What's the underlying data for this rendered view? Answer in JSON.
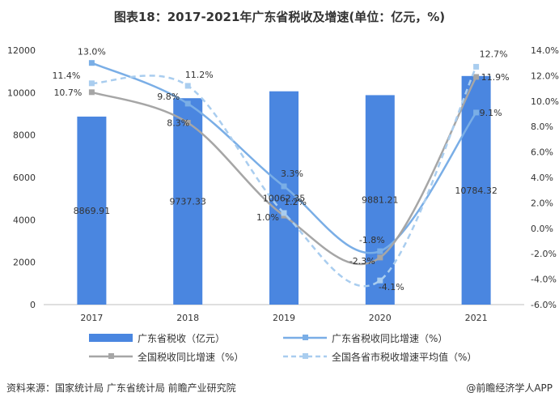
{
  "title": "图表18：2017-2021年广东省税收及增速(单位：亿元，%)",
  "footer": {
    "source": "资料来源：国家统计局 广东省统计局 前瞻产业研究院",
    "brand": "@前瞻经济学人APP"
  },
  "colors": {
    "bar": "#4a86e0",
    "gd_growth": "#7aaee6",
    "national_growth": "#a6a6a6",
    "provincial_avg": "#a9cdef"
  },
  "chart_data": {
    "type": "bar",
    "categories": [
      "2017",
      "2018",
      "2019",
      "2020",
      "2021"
    ],
    "left_axis": {
      "min": 0,
      "max": 12000,
      "ticks": [
        "0",
        "2000",
        "4000",
        "6000",
        "8000",
        "10000",
        "12000"
      ]
    },
    "right_axis": {
      "min": -6,
      "max": 14,
      "ticks": [
        "-6.0%",
        "-4.0%",
        "-2.0%",
        "0.0%",
        "2.0%",
        "4.0%",
        "6.0%",
        "8.0%",
        "10.0%",
        "12.0%",
        "14.0%"
      ]
    },
    "bars": {
      "name": "广东省税收（亿元）",
      "values": [
        8869.91,
        9737.33,
        10062.35,
        9881.21,
        10784.32
      ],
      "labels": [
        "8869.91",
        "9737.33",
        "10062.35",
        "9881.21",
        "10784.32"
      ]
    },
    "series": [
      {
        "name": "广东省税收同比增速（%）",
        "values": [
          13.0,
          9.8,
          3.3,
          -1.8,
          9.1
        ],
        "labels": [
          "13.0%",
          "9.8%",
          "3.3%",
          "-1.8%",
          "9.1%"
        ]
      },
      {
        "name": "全国税收同比增速（%）",
        "values": [
          10.7,
          8.3,
          1.0,
          -2.3,
          11.9
        ],
        "labels": [
          "10.7%",
          "8.3%",
          "1.0%",
          "-2.3%",
          "11.9%"
        ]
      },
      {
        "name": "全国各省市税收增速平均值（%）",
        "values": [
          11.4,
          11.2,
          1.2,
          -4.1,
          12.7
        ],
        "labels": [
          "11.4%",
          "11.2%",
          "1.2%",
          "-4.1%",
          "12.7%"
        ]
      }
    ]
  }
}
